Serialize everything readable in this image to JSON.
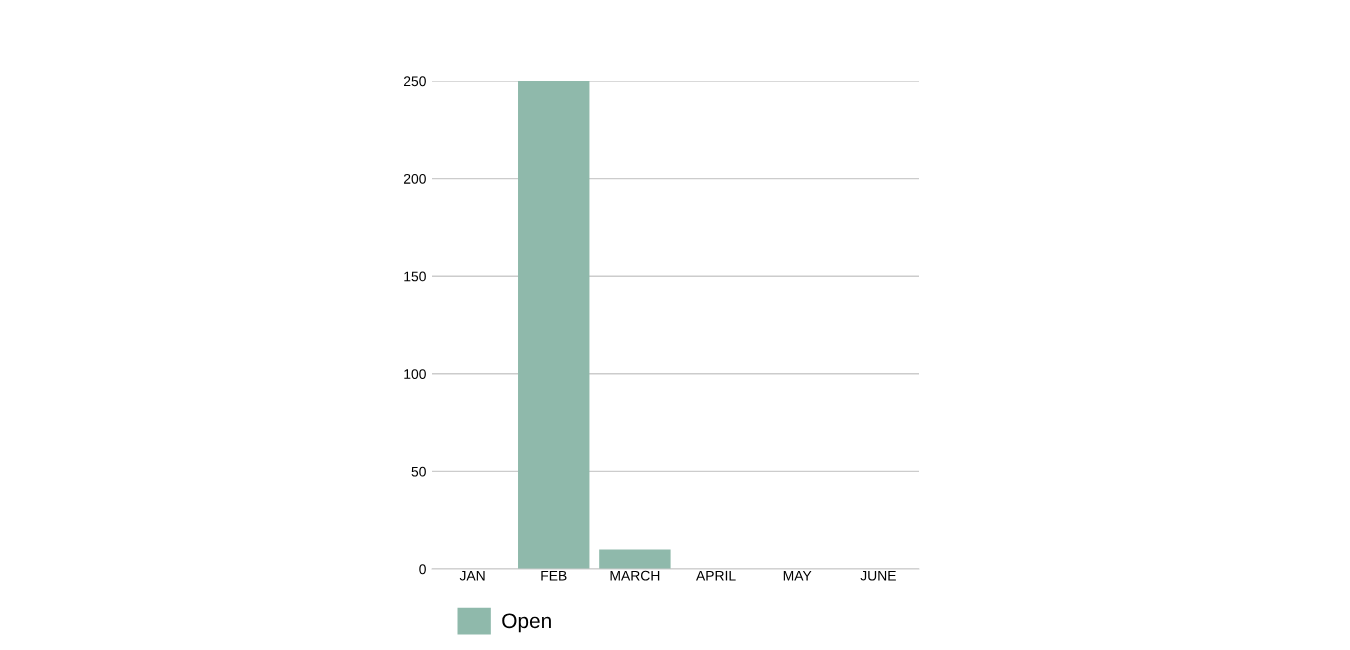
{
  "chart_data": {
    "type": "bar",
    "categories": [
      "JAN",
      "FEB",
      "MARCH",
      "APRIL",
      "MAY",
      "JUNE"
    ],
    "series": [
      {
        "name": "Open",
        "color": "#8fb9ab",
        "values": [
          0,
          250,
          10,
          0,
          0,
          0
        ]
      }
    ],
    "ylim": [
      0,
      250
    ],
    "yticks": [
      0,
      50,
      100,
      150,
      200,
      250
    ],
    "grid": "y",
    "legend": "bottom"
  }
}
